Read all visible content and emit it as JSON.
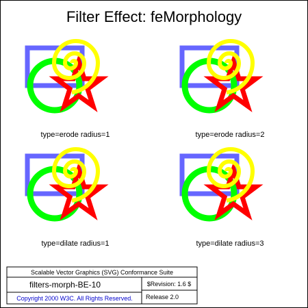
{
  "title": "Filter Effect: feMorphology",
  "captions": {
    "erode1": "type=erode radius=1",
    "erode2": "type=erode radius=2",
    "dilate1": "type=dilate radius=1",
    "dilate3": "type=dilate radius=3"
  },
  "legend": {
    "suite": "Scalable Vector Graphics (SVG) Conformance Suite",
    "test_name": "filters-morph-BE-10",
    "revision": "$Revision: 1.6 $",
    "copyright": "Copyright 2000 W3C. All Rights Reserved.",
    "release": "Release 2.0"
  },
  "colors": {
    "blue_rect": "#6666ff",
    "green_circle": "#00ff00",
    "red_star": "#ff0000",
    "yellow_spiral": "#ffff00",
    "copyright_text": "#0000cc"
  }
}
